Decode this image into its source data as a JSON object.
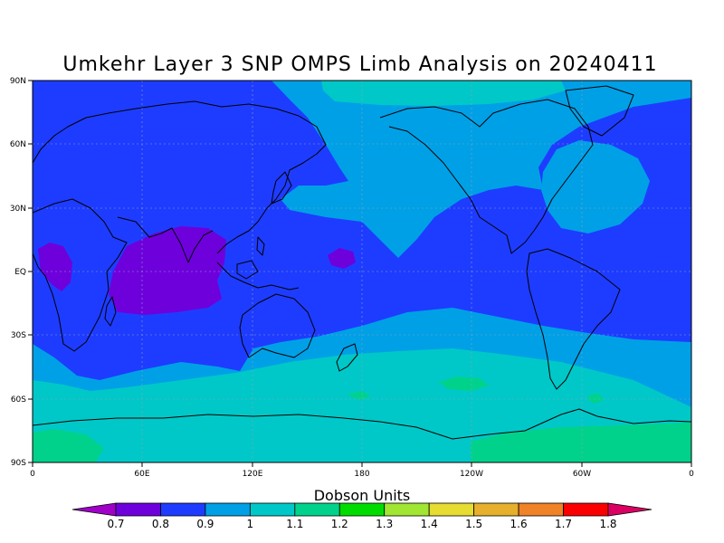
{
  "title": "Umkehr Layer 3 SNP OMPS Limb Analysis on 20240411",
  "x_ticks": [
    "0",
    "60E",
    "120E",
    "180",
    "120W",
    "60W",
    "0"
  ],
  "y_ticks": [
    "90N",
    "60N",
    "30N",
    "EQ",
    "30S",
    "60S",
    "90S"
  ],
  "colorbar": {
    "title": "Dobson Units",
    "labels": [
      "0.7",
      "0.8",
      "0.9",
      "1",
      "1.1",
      "1.2",
      "1.3",
      "1.4",
      "1.5",
      "1.6",
      "1.7",
      "1.8"
    ],
    "colors": [
      "#a000c8",
      "#6e00dc",
      "#1e3cff",
      "#00a0e6",
      "#00c8c8",
      "#00d28c",
      "#00dc00",
      "#a0e632",
      "#e6dc32",
      "#e6af2d",
      "#f08228",
      "#fa0000",
      "#dc0064"
    ]
  },
  "chart_data": {
    "type": "heatmap",
    "title": "Umkehr Layer 3 SNP OMPS Limb Analysis on 20240411",
    "units": "Dobson Units",
    "x_range_deg_east": [
      0,
      360
    ],
    "y_range_deg_lat": [
      -90,
      90
    ],
    "levels": [
      0.7,
      0.8,
      0.9,
      1.0,
      1.1,
      1.2,
      1.3,
      1.4,
      1.5,
      1.6,
      1.7,
      1.8
    ],
    "background_class": "0.8-0.9",
    "regions": [
      {
        "class": "0.9-1.0",
        "area": "North Pacific / high Arctic belt"
      },
      {
        "class": "1.0-1.1",
        "area": "Arctic cap near 150E-150W"
      },
      {
        "class": "0.9-1.0",
        "area": "Western North Atlantic blob"
      },
      {
        "class": "0.7-0.8",
        "area": "Indian Ocean / Southeast Asia"
      },
      {
        "class": "0.7-0.8",
        "area": "Western equatorial Africa"
      },
      {
        "class": "0.7-0.8",
        "area": "Small patch near 170E equator"
      },
      {
        "class": "0.9-1.0",
        "area": "Southern mid-latitude band 30S-60S"
      },
      {
        "class": "1.0-1.1",
        "area": "Southern ocean band 45S-90S"
      },
      {
        "class": "1.1-1.2",
        "area": "Antarctic patches"
      }
    ],
    "grid": true
  }
}
